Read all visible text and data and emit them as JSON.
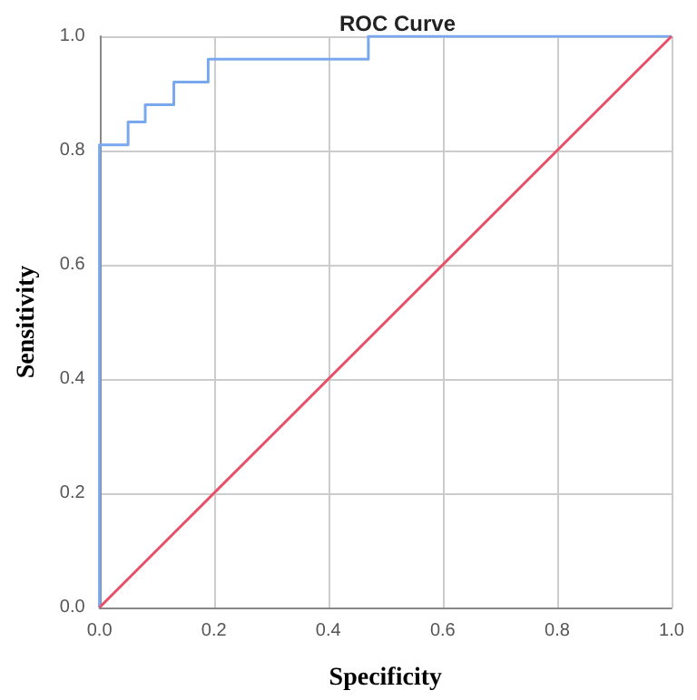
{
  "chart_data": {
    "type": "line",
    "title": "ROC Curve",
    "xlabel": "Specificity",
    "ylabel": "Sensitivity",
    "series": [
      {
        "color": "#7aa8ee",
        "x": [
          0,
          0,
          0.05,
          0.05,
          0.08,
          0.08,
          0.13,
          0.13,
          0.19,
          0.19,
          0.47,
          0.47,
          1
        ],
        "values": [
          0,
          0.81,
          0.81,
          0.85,
          0.85,
          0.88,
          0.88,
          0.92,
          0.92,
          0.96,
          0.96,
          1,
          1
        ]
      },
      {
        "color": "#e8506a",
        "x": [
          0,
          1
        ],
        "values": [
          0,
          1
        ]
      }
    ],
    "xlim": [
      0,
      1
    ],
    "ylim": [
      0,
      1
    ],
    "xticks": [
      {
        "value": 0,
        "label": "0.0"
      },
      {
        "value": 0.2,
        "label": "0.2"
      },
      {
        "value": 0.4,
        "label": "0.4"
      },
      {
        "value": 0.6,
        "label": "0.6"
      },
      {
        "value": 0.8,
        "label": "0.8"
      },
      {
        "value": 1,
        "label": "1.0"
      }
    ],
    "yticks": [
      {
        "value": 0,
        "label": "0.0"
      },
      {
        "value": 0.2,
        "label": "0.2"
      },
      {
        "value": 0.4,
        "label": "0.4"
      },
      {
        "value": 0.6,
        "label": "0.6"
      },
      {
        "value": 0.8,
        "label": "0.8"
      },
      {
        "value": 1,
        "label": "1.0"
      }
    ],
    "grid": true,
    "marker": "none",
    "line_style": "solid"
  }
}
